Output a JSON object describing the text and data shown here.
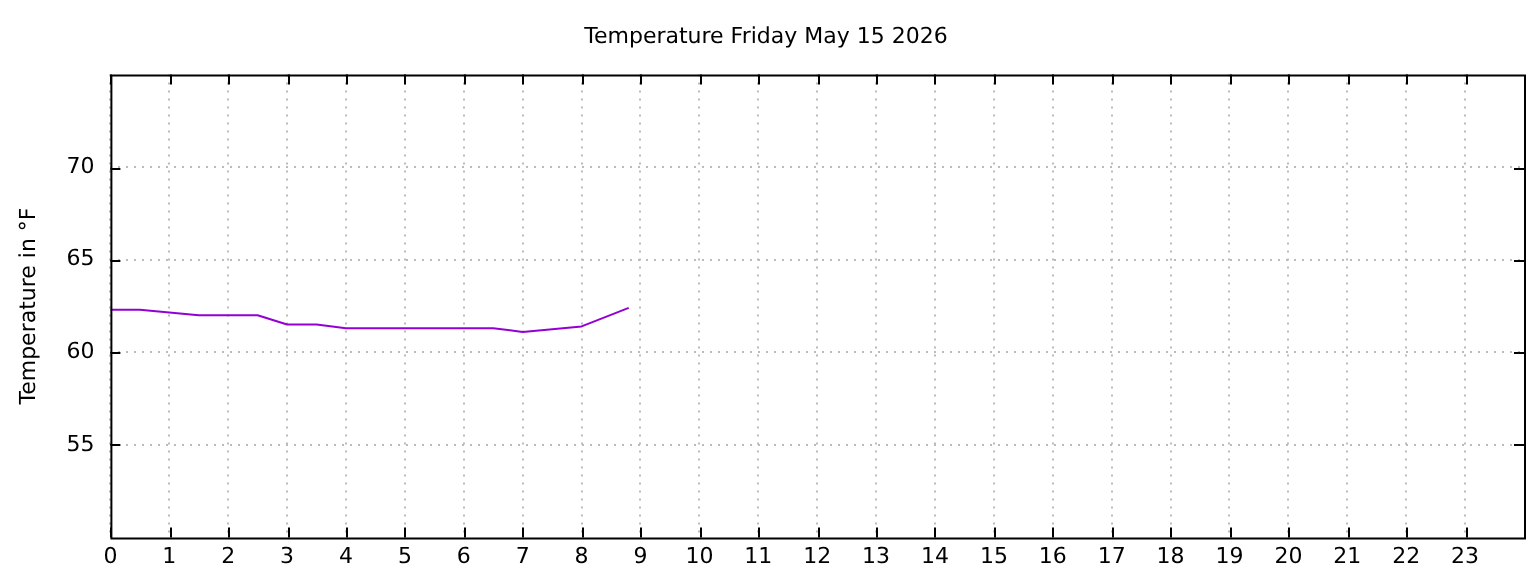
{
  "chart_data": {
    "type": "line",
    "title": "Temperature Friday May 15 2026",
    "ylabel": "Temperature in °F",
    "series": [
      {
        "color": "#9400d3",
        "x": [
          0,
          0.5,
          1.5,
          2.5,
          3,
          3.5,
          4,
          6.5,
          7,
          8,
          8.8
        ],
        "values": [
          62.3,
          62.3,
          62.0,
          62.0,
          61.5,
          61.5,
          61.3,
          61.3,
          61.1,
          61.4,
          62.4
        ]
      }
    ],
    "xlim": [
      0,
      24
    ],
    "xticks": [
      0,
      1,
      2,
      3,
      4,
      5,
      6,
      7,
      8,
      9,
      10,
      11,
      12,
      13,
      14,
      15,
      16,
      17,
      18,
      19,
      20,
      21,
      22,
      23
    ],
    "ylim": [
      50,
      75
    ],
    "yticks": [
      55,
      60,
      65,
      70
    ],
    "grid": true,
    "legend": false,
    "marker": "none",
    "line_style": "solid"
  }
}
